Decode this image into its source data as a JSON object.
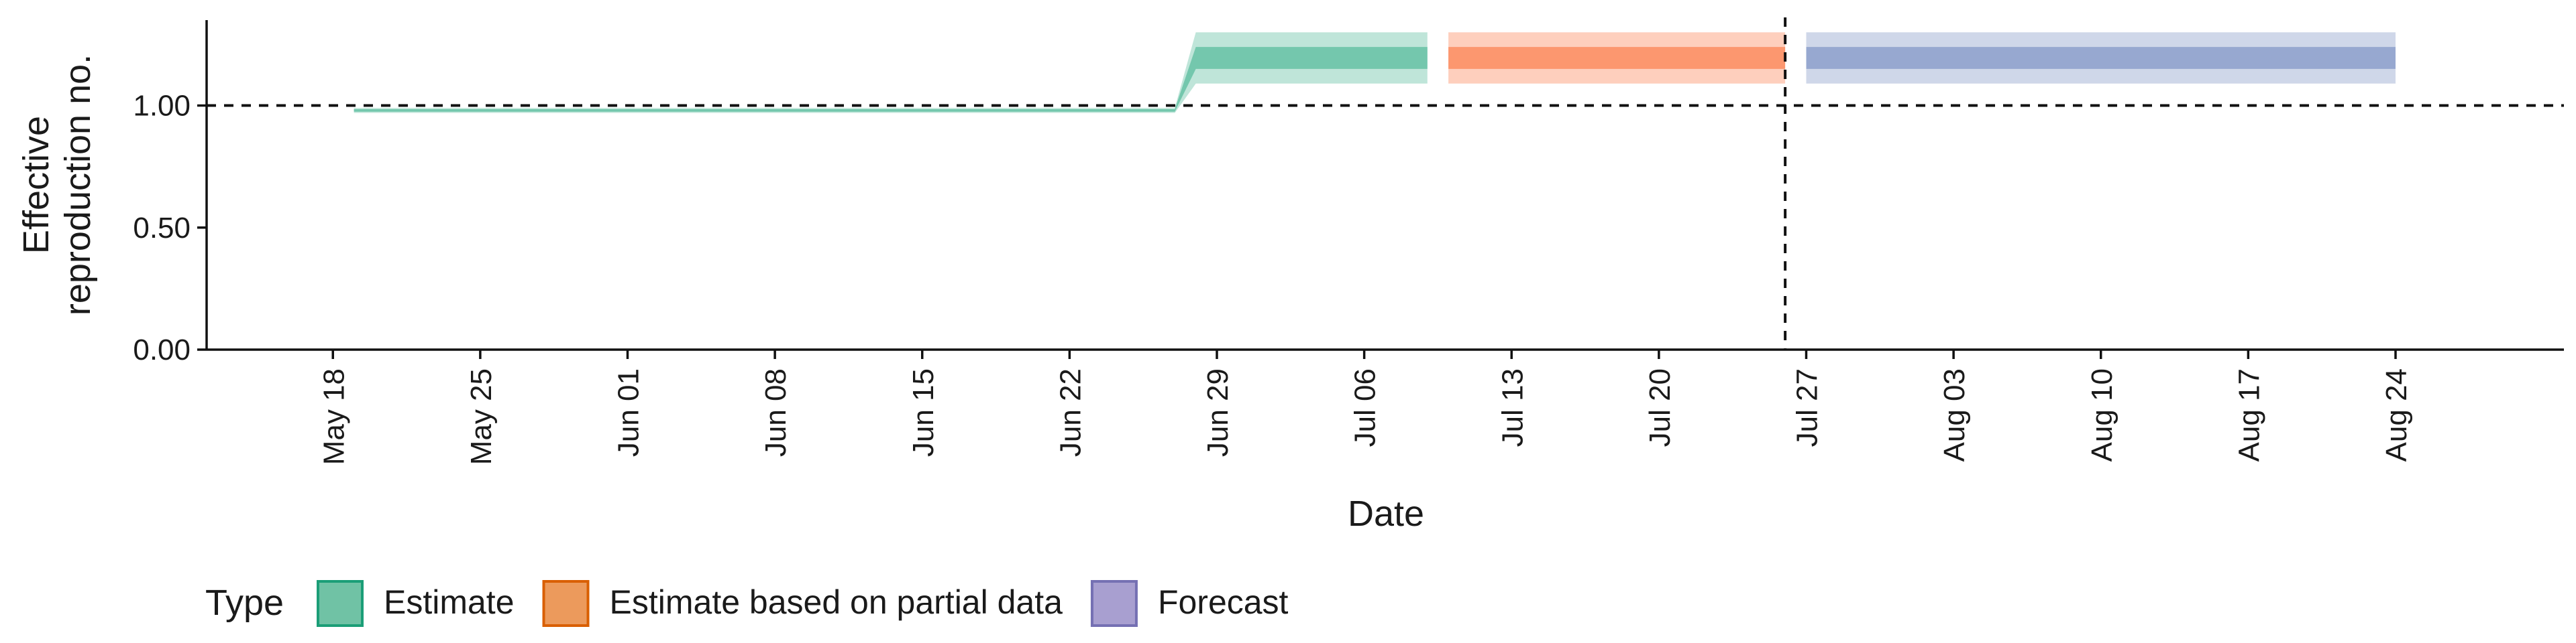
{
  "chart_data": {
    "type": "area",
    "title": "",
    "xlabel": "Date",
    "ylabel": [
      "Effective",
      "reproduction no."
    ],
    "x_type": "date",
    "year": 2020,
    "xlim": [
      "2020-05-12",
      "2020-09-01"
    ],
    "ylim": [
      0,
      1.35
    ],
    "yticks": [
      0,
      0.5,
      1.0
    ],
    "ytick_labels": [
      "0.00",
      "0.50",
      "1.00"
    ],
    "xticks": [
      "2020-05-18",
      "2020-05-25",
      "2020-06-01",
      "2020-06-08",
      "2020-06-15",
      "2020-06-22",
      "2020-06-29",
      "2020-07-06",
      "2020-07-13",
      "2020-07-20",
      "2020-07-27",
      "2020-08-03",
      "2020-08-10",
      "2020-08-17",
      "2020-08-24"
    ],
    "xtick_labels": [
      "May 18",
      "May 25",
      "Jun 01",
      "Jun 08",
      "Jun 15",
      "Jun 22",
      "Jun 29",
      "Jul 06",
      "Jul 13",
      "Jul 20",
      "Jul 27",
      "Aug 03",
      "Aug 10",
      "Aug 17",
      "Aug 24"
    ],
    "reference_lines": {
      "horizontal_y": 1.0,
      "vertical_date": "2020-07-26"
    },
    "grid": false,
    "series": [
      {
        "name": "Estimate",
        "color": "#66c2a5",
        "points": [
          {
            "date": "2020-05-19",
            "outer_lo": 0.97,
            "outer_hi": 0.99,
            "inner_lo": 0.975,
            "inner_hi": 0.985
          },
          {
            "date": "2020-06-27",
            "outer_lo": 0.97,
            "outer_hi": 0.99,
            "inner_lo": 0.975,
            "inner_hi": 0.985
          },
          {
            "date": "2020-06-28",
            "outer_lo": 1.09,
            "outer_hi": 1.3,
            "inner_lo": 1.15,
            "inner_hi": 1.24
          },
          {
            "date": "2020-07-09",
            "outer_lo": 1.09,
            "outer_hi": 1.3,
            "inner_lo": 1.15,
            "inner_hi": 1.24
          }
        ]
      },
      {
        "name": "Estimate based on partial data",
        "color": "#fc8d62",
        "points": [
          {
            "date": "2020-07-10",
            "outer_lo": 1.09,
            "outer_hi": 1.3,
            "inner_lo": 1.15,
            "inner_hi": 1.24
          },
          {
            "date": "2020-07-26",
            "outer_lo": 1.09,
            "outer_hi": 1.3,
            "inner_lo": 1.15,
            "inner_hi": 1.24
          }
        ]
      },
      {
        "name": "Forecast",
        "color": "#8da0cb",
        "points": [
          {
            "date": "2020-07-27",
            "outer_lo": 1.09,
            "outer_hi": 1.3,
            "inner_lo": 1.15,
            "inner_hi": 1.24
          },
          {
            "date": "2020-08-24",
            "outer_lo": 1.09,
            "outer_hi": 1.3,
            "inner_lo": 1.15,
            "inner_hi": 1.24
          }
        ]
      }
    ],
    "legend": {
      "title": "Type",
      "placement": "bottom-left",
      "items": [
        {
          "label": "Estimate",
          "fill": "#70c2a5",
          "border": "#1b9e77"
        },
        {
          "label": "Estimate based on partial data",
          "fill": "#ec9a5c",
          "border": "#d95f02"
        },
        {
          "label": "Forecast",
          "fill": "#a89fd0",
          "border": "#7570b3"
        }
      ]
    }
  }
}
